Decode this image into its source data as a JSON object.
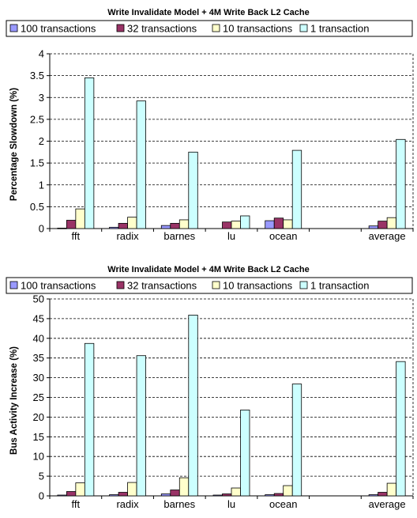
{
  "chart_data": [
    {
      "type": "bar",
      "title": "Write Invalidate Model + 4M Write Back L2 Cache",
      "xlabel": "",
      "ylabel": "Percentage Slowdown (%)",
      "categories": [
        "fft",
        "radix",
        "barnes",
        "lu",
        "ocean",
        "",
        "average"
      ],
      "ylim": [
        0,
        4
      ],
      "ytick_labels": [
        "0",
        "0.5",
        "1",
        "1.5",
        "2",
        "2.5",
        "3",
        "3.5",
        "4"
      ],
      "grid": "horizontal dashed",
      "legend_position": "top",
      "series": [
        {
          "name": "100 transactions",
          "color": "#9999ff",
          "values": [
            0.01,
            0.03,
            0.07,
            0.0,
            0.18,
            0,
            0.06
          ]
        },
        {
          "name": "32 transactions",
          "color": "#993366",
          "values": [
            0.19,
            0.12,
            0.12,
            0.15,
            0.24,
            0,
            0.17
          ]
        },
        {
          "name": "10 transactions",
          "color": "#ffffcc",
          "values": [
            0.45,
            0.26,
            0.2,
            0.17,
            0.2,
            0,
            0.25
          ]
        },
        {
          "name": "1 transaction",
          "color": "#ccffff",
          "values": [
            3.45,
            2.92,
            1.75,
            0.29,
            1.79,
            0,
            2.04
          ]
        }
      ]
    },
    {
      "type": "bar",
      "title": "Write Invalidate Model + 4M Write Back L2 Cache",
      "xlabel": "",
      "ylabel": "Bus Activity Increase (%)",
      "categories": [
        "fft",
        "radix",
        "barnes",
        "lu",
        "ocean",
        "",
        "average"
      ],
      "ylim": [
        0,
        50
      ],
      "ytick_labels": [
        "0",
        "5",
        "10",
        "15",
        "20",
        "25",
        "30",
        "35",
        "40",
        "45",
        "50"
      ],
      "grid": "horizontal dashed",
      "legend_position": "top",
      "series": [
        {
          "name": "100 transactions",
          "color": "#9999ff",
          "values": [
            0.2,
            0.3,
            0.5,
            0.2,
            0.3,
            0,
            0.3
          ]
        },
        {
          "name": "32 transactions",
          "color": "#993366",
          "values": [
            1.1,
            0.9,
            1.5,
            0.5,
            0.6,
            0,
            0.9
          ]
        },
        {
          "name": "10 transactions",
          "color": "#ffffcc",
          "values": [
            3.3,
            3.4,
            4.6,
            2.0,
            2.6,
            0,
            3.2
          ]
        },
        {
          "name": "1 transaction",
          "color": "#ccffff",
          "values": [
            38.7,
            35.6,
            45.9,
            21.8,
            28.4,
            0,
            34.1
          ]
        }
      ]
    }
  ]
}
